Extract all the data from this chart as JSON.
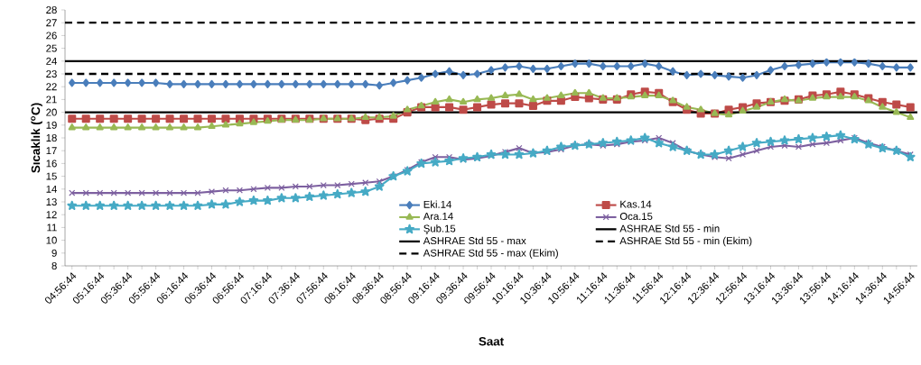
{
  "chart_data": {
    "type": "line",
    "xlabel": "Saat",
    "ylabel": "Sıcaklık ($^{o}$C)",
    "categories": [
      "04:56:44",
      null,
      "05:16:44",
      null,
      "05:36:44",
      null,
      "05:56:44",
      null,
      "06:16:44",
      null,
      "06:36:44",
      null,
      "06:56:44",
      null,
      "07:16:44",
      null,
      "07:36:44",
      null,
      "07:56:44",
      null,
      "08:16:44",
      null,
      "08:36:44",
      null,
      "08:56:44",
      null,
      "09:16:44",
      null,
      "09:36:44",
      null,
      "09:56:44",
      null,
      "10:16:44",
      null,
      "10:36:44",
      null,
      "10:56:44",
      null,
      "11:16:44",
      null,
      "11:36:44",
      null,
      "11:56:44",
      null,
      "12:16:44",
      null,
      "12:36:44",
      null,
      "12:56:44",
      null,
      "13:16:44",
      null,
      "13:36:44",
      null,
      "13:56:44",
      null,
      "14:16:44",
      null,
      "14:36:44",
      null,
      "14:56:44"
    ],
    "series": [
      {
        "name": "Eki.14",
        "color": "#4a7ebb",
        "marker": "diamond",
        "values": [
          22.3,
          22.3,
          22.3,
          22.3,
          22.3,
          22.3,
          22.3,
          22.2,
          22.2,
          22.2,
          22.2,
          22.2,
          22.2,
          22.2,
          22.2,
          22.2,
          22.2,
          22.2,
          22.2,
          22.2,
          22.2,
          22.2,
          22.1,
          22.3,
          22.5,
          22.7,
          23.0,
          23.2,
          22.9,
          23.0,
          23.3,
          23.5,
          23.6,
          23.4,
          23.4,
          23.6,
          23.8,
          23.8,
          23.6,
          23.6,
          23.6,
          23.8,
          23.6,
          23.2,
          22.9,
          23.0,
          22.9,
          22.8,
          22.7,
          22.9,
          23.3,
          23.6,
          23.7,
          23.8,
          23.9,
          23.9,
          23.9,
          23.8,
          23.6,
          23.5,
          23.5
        ]
      },
      {
        "name": "Kas.14",
        "color": "#be4b48",
        "marker": "square",
        "values": [
          19.5,
          19.5,
          19.5,
          19.5,
          19.5,
          19.5,
          19.5,
          19.5,
          19.5,
          19.5,
          19.5,
          19.5,
          19.5,
          19.5,
          19.5,
          19.5,
          19.5,
          19.5,
          19.5,
          19.5,
          19.5,
          19.4,
          19.5,
          19.5,
          20.0,
          20.4,
          20.4,
          20.4,
          20.2,
          20.4,
          20.6,
          20.7,
          20.7,
          20.5,
          20.9,
          20.9,
          21.2,
          21.1,
          21.0,
          21.0,
          21.4,
          21.6,
          21.5,
          20.8,
          20.2,
          19.9,
          19.9,
          20.2,
          20.4,
          20.7,
          20.8,
          20.9,
          21.0,
          21.3,
          21.4,
          21.6,
          21.4,
          21.1,
          20.8,
          20.6,
          20.4
        ]
      },
      {
        "name": "Ara.14",
        "color": "#98b954",
        "marker": "triangle",
        "values": [
          18.8,
          18.8,
          18.8,
          18.8,
          18.8,
          18.8,
          18.8,
          18.8,
          18.8,
          18.8,
          18.9,
          19.0,
          19.1,
          19.2,
          19.3,
          19.4,
          19.4,
          19.4,
          19.5,
          19.5,
          19.5,
          19.6,
          19.6,
          19.7,
          20.2,
          20.5,
          20.8,
          21.0,
          20.8,
          21.0,
          21.1,
          21.3,
          21.4,
          21.0,
          21.1,
          21.3,
          21.5,
          21.5,
          21.1,
          21.1,
          21.2,
          21.3,
          21.3,
          20.9,
          20.4,
          20.2,
          19.9,
          19.8,
          20.1,
          20.4,
          20.8,
          21.0,
          20.9,
          21.1,
          21.2,
          21.2,
          21.2,
          20.9,
          20.4,
          20.0,
          19.6
        ]
      },
      {
        "name": "Oca.15",
        "color": "#7d60a0",
        "marker": "cross",
        "values": [
          13.7,
          13.7,
          13.7,
          13.7,
          13.7,
          13.7,
          13.7,
          13.7,
          13.7,
          13.7,
          13.8,
          13.9,
          13.9,
          14.0,
          14.1,
          14.1,
          14.2,
          14.2,
          14.3,
          14.3,
          14.4,
          14.5,
          14.6,
          15.0,
          15.5,
          16.1,
          16.5,
          16.5,
          16.3,
          16.4,
          16.6,
          16.9,
          17.2,
          16.8,
          16.9,
          17.1,
          17.4,
          17.5,
          17.4,
          17.5,
          17.7,
          17.8,
          18.0,
          17.6,
          17.0,
          16.7,
          16.5,
          16.4,
          16.7,
          17.0,
          17.3,
          17.4,
          17.3,
          17.5,
          17.6,
          17.8,
          18.0,
          17.6,
          17.3,
          17.0,
          16.7
        ]
      },
      {
        "name": "Şub.15",
        "color": "#46aac5",
        "marker": "star",
        "values": [
          12.7,
          12.7,
          12.7,
          12.7,
          12.7,
          12.7,
          12.7,
          12.7,
          12.7,
          12.7,
          12.8,
          12.8,
          13.0,
          13.1,
          13.1,
          13.3,
          13.3,
          13.4,
          13.5,
          13.6,
          13.7,
          13.8,
          14.2,
          15.0,
          15.4,
          16.0,
          16.1,
          16.2,
          16.4,
          16.5,
          16.7,
          16.7,
          16.7,
          16.8,
          17.0,
          17.3,
          17.4,
          17.5,
          17.6,
          17.7,
          17.8,
          18.0,
          17.6,
          17.3,
          17.0,
          16.7,
          16.7,
          17.0,
          17.3,
          17.6,
          17.7,
          17.8,
          17.9,
          18.0,
          18.1,
          18.2,
          17.9,
          17.5,
          17.2,
          17.0,
          16.5
        ]
      }
    ],
    "ref_lines": [
      {
        "axis": "y",
        "value": 20,
        "label": "ASHRAE Std 55 - min",
        "color": "#000000",
        "line_style": "solid"
      },
      {
        "axis": "y",
        "value": 24,
        "label": "ASHRAE Std 55 - max",
        "color": "#000000",
        "line_style": "solid"
      },
      {
        "axis": "y",
        "value": 23,
        "label": "ASHRAE Std 55 - min (Ekim)",
        "color": "#000000",
        "line_style": "dashed"
      },
      {
        "axis": "y",
        "value": 27,
        "label": "ASHRAE Std 55 - max (Ekim)",
        "color": "#000000",
        "line_style": "dashed"
      }
    ],
    "ylim": [
      8,
      28
    ],
    "yticks": [
      8,
      9,
      10,
      11,
      12,
      13,
      14,
      15,
      16,
      17,
      18,
      19,
      20,
      21,
      22,
      23,
      24,
      25,
      26,
      27,
      28
    ],
    "legend": "bottom"
  }
}
